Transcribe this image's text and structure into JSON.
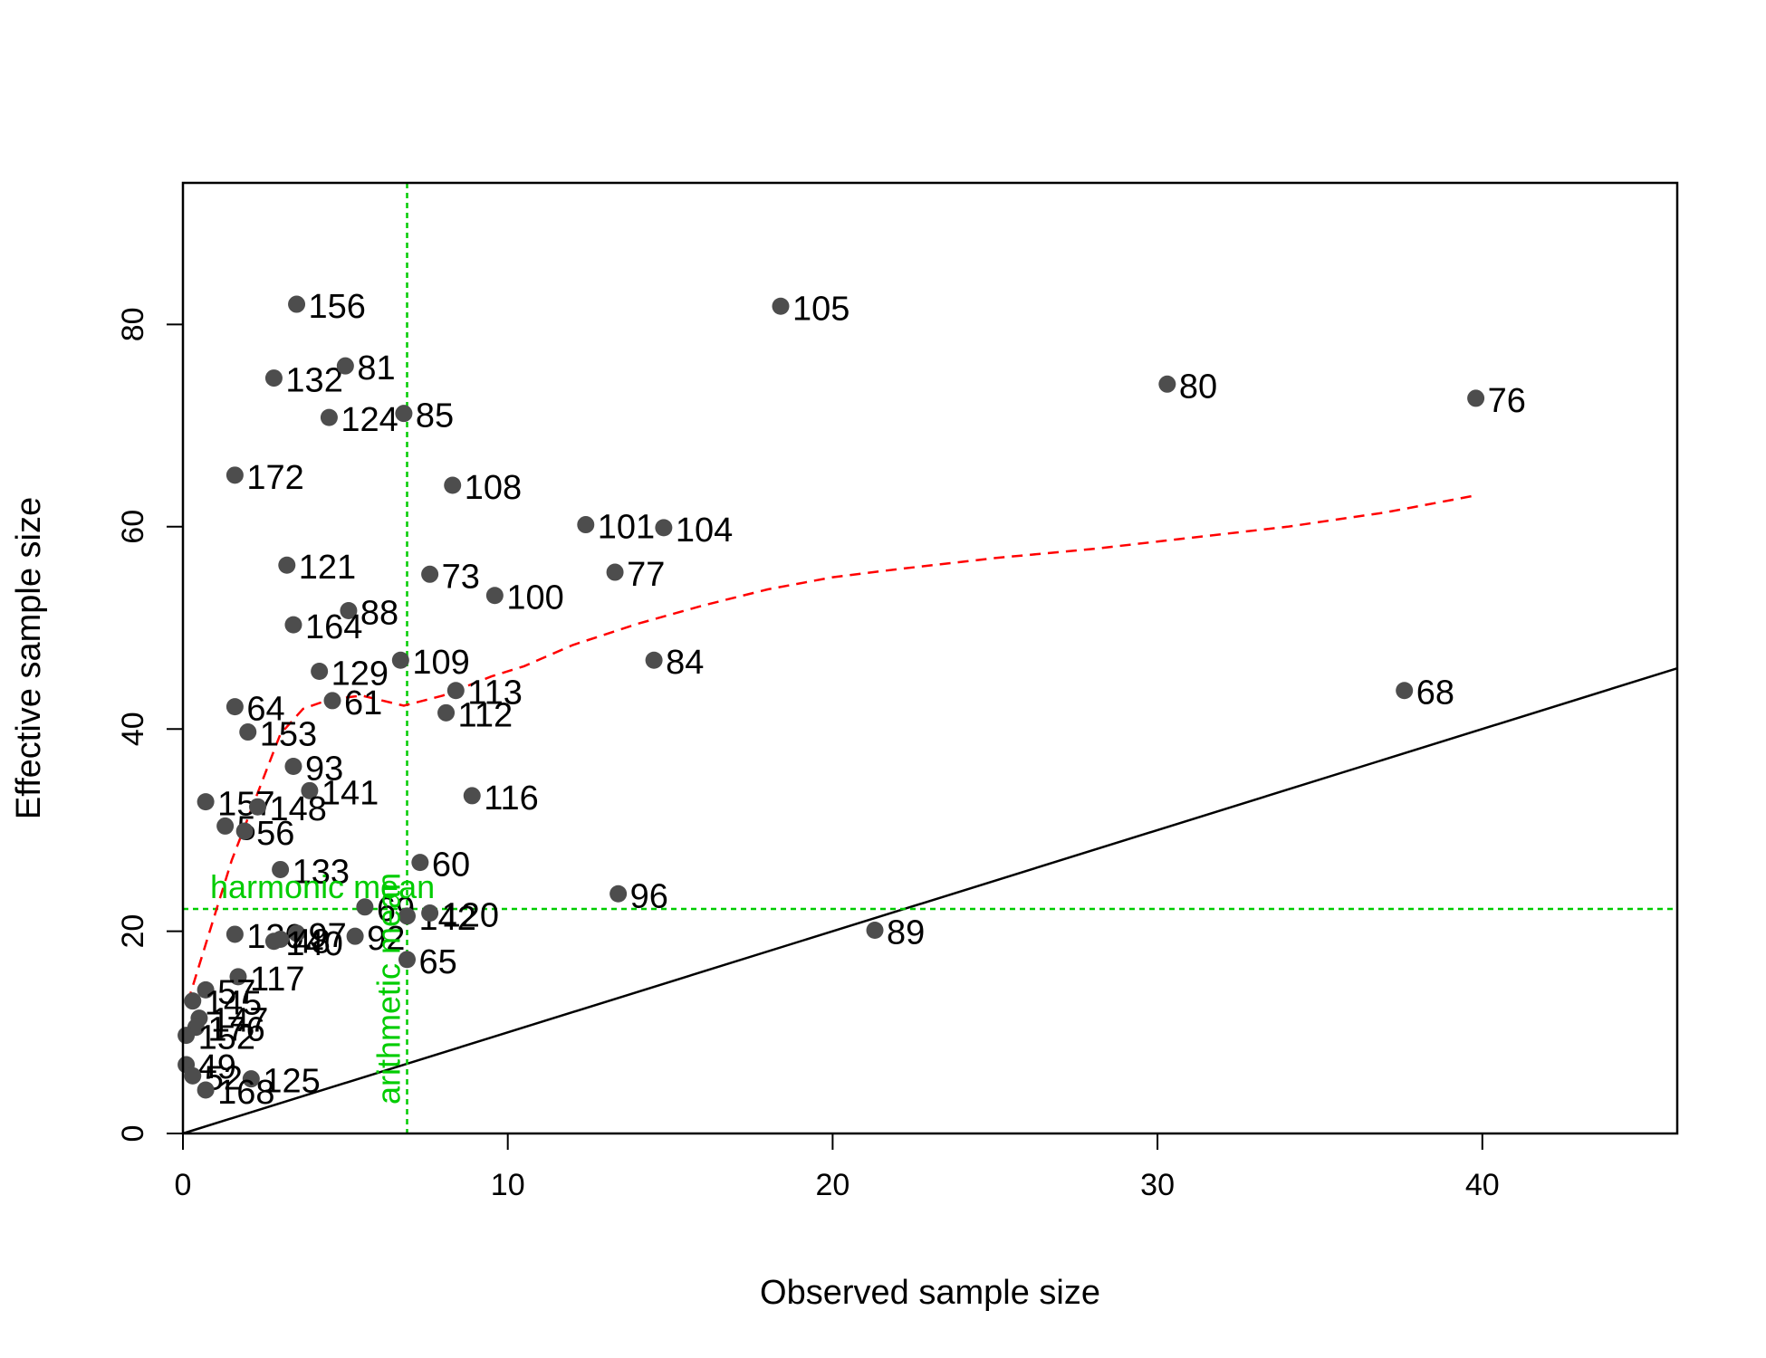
{
  "chart_data": {
    "type": "scatter",
    "xlabel": "Observed sample size",
    "ylabel": "Effective sample size",
    "xlim": [
      0,
      46
    ],
    "ylim": [
      0,
      94
    ],
    "x_ticks": [
      0,
      10,
      20,
      30,
      40
    ],
    "y_ticks": [
      0,
      20,
      40,
      60,
      80
    ],
    "grid": false,
    "point_color": "#4d4d4d",
    "points": [
      {
        "label": "156",
        "x": 3.5,
        "y": 82
      },
      {
        "label": "105",
        "x": 18.4,
        "y": 81.8
      },
      {
        "label": "132",
        "x": 2.8,
        "y": 74.7
      },
      {
        "label": "81",
        "x": 5.0,
        "y": 75.9
      },
      {
        "label": "80",
        "x": 30.3,
        "y": 74.1
      },
      {
        "label": "76",
        "x": 39.8,
        "y": 72.7
      },
      {
        "label": "124",
        "x": 4.5,
        "y": 70.8
      },
      {
        "label": "85",
        "x": 6.8,
        "y": 71.2
      },
      {
        "label": "172",
        "x": 1.6,
        "y": 65.1
      },
      {
        "label": "108",
        "x": 8.3,
        "y": 64.1
      },
      {
        "label": "101",
        "x": 12.4,
        "y": 60.2
      },
      {
        "label": "104",
        "x": 14.8,
        "y": 59.9
      },
      {
        "label": "121",
        "x": 3.2,
        "y": 56.2
      },
      {
        "label": "73",
        "x": 7.6,
        "y": 55.3
      },
      {
        "label": "77",
        "x": 13.3,
        "y": 55.5
      },
      {
        "label": "100",
        "x": 9.6,
        "y": 53.2
      },
      {
        "label": "88",
        "x": 5.1,
        "y": 51.7
      },
      {
        "label": "164",
        "x": 3.4,
        "y": 50.3
      },
      {
        "label": "109",
        "x": 6.7,
        "y": 46.8
      },
      {
        "label": "84",
        "x": 14.5,
        "y": 46.8
      },
      {
        "label": "129",
        "x": 4.2,
        "y": 45.7
      },
      {
        "label": "113",
        "x": 8.4,
        "y": 43.8
      },
      {
        "label": "68",
        "x": 37.6,
        "y": 43.8
      },
      {
        "label": "61",
        "x": 4.6,
        "y": 42.8
      },
      {
        "label": "64",
        "x": 1.6,
        "y": 42.2
      },
      {
        "label": "112",
        "x": 8.1,
        "y": 41.6
      },
      {
        "label": "153",
        "x": 2.0,
        "y": 39.7
      },
      {
        "label": "93",
        "x": 3.4,
        "y": 36.3
      },
      {
        "label": "141",
        "x": 3.9,
        "y": 33.9
      },
      {
        "label": "116",
        "x": 8.9,
        "y": 33.4
      },
      {
        "label": "157",
        "x": 0.7,
        "y": 32.8
      },
      {
        "label": "148",
        "x": 2.3,
        "y": 32.3
      },
      {
        "label": "5",
        "x": 1.3,
        "y": 30.4
      },
      {
        "label": "56",
        "x": 1.9,
        "y": 29.9
      },
      {
        "label": "133",
        "x": 3.0,
        "y": 26.1
      },
      {
        "label": "60",
        "x": 7.3,
        "y": 26.8
      },
      {
        "label": "96",
        "x": 13.4,
        "y": 23.7
      },
      {
        "label": "69",
        "x": 5.6,
        "y": 22.4
      },
      {
        "label": "142",
        "x": 6.9,
        "y": 21.5
      },
      {
        "label": "120",
        "x": 7.6,
        "y": 21.8
      },
      {
        "label": "89",
        "x": 21.3,
        "y": 20.1
      },
      {
        "label": "130",
        "x": 1.6,
        "y": 19.7
      },
      {
        "label": "97",
        "x": 3.5,
        "y": 19.8
      },
      {
        "label": "92",
        "x": 5.3,
        "y": 19.5
      },
      {
        "label": "140",
        "x": 2.8,
        "y": 19.0
      },
      {
        "label": "48",
        "x": 3.0,
        "y": 19.2
      },
      {
        "label": "65",
        "x": 6.9,
        "y": 17.2
      },
      {
        "label": "117",
        "x": 1.7,
        "y": 15.5
      },
      {
        "label": "57",
        "x": 0.7,
        "y": 14.2
      },
      {
        "label": "145",
        "x": 0.3,
        "y": 13.1
      },
      {
        "label": "147",
        "x": 0.5,
        "y": 11.4
      },
      {
        "label": "176",
        "x": 0.4,
        "y": 10.5
      },
      {
        "label": "152",
        "x": 0.1,
        "y": 9.7
      },
      {
        "label": "49",
        "x": 0.1,
        "y": 6.8
      },
      {
        "label": "52",
        "x": 0.3,
        "y": 5.7
      },
      {
        "label": "125",
        "x": 2.1,
        "y": 5.4
      },
      {
        "label": "168",
        "x": 0.7,
        "y": 4.3
      }
    ],
    "identity_line": {
      "color": "#000000",
      "from": [
        0,
        0
      ],
      "to": [
        46,
        46
      ]
    },
    "smooth_line": {
      "color": "#ff0000",
      "style": "dashed",
      "x": [
        0.15,
        1.5,
        3,
        3.7,
        4.5,
        5.5,
        6.8,
        8,
        9.5,
        10.5,
        12,
        14,
        16,
        18,
        20,
        22,
        25,
        28,
        31,
        34,
        37,
        39.8
      ],
      "y": [
        13.0,
        27,
        39.5,
        42.0,
        42.9,
        43.3,
        42.3,
        43.3,
        45.2,
        46.2,
        48.3,
        50.4,
        52.2,
        53.8,
        55.0,
        55.8,
        56.9,
        57.8,
        58.9,
        60.0,
        61.4,
        63.1
      ]
    },
    "reference_lines": {
      "color": "#00cc00",
      "arithmetic_mean": {
        "label": "arithmetic mean",
        "x": 6.9
      },
      "harmonic_mean": {
        "label": "harmonic mean",
        "y": 22.2
      }
    }
  }
}
